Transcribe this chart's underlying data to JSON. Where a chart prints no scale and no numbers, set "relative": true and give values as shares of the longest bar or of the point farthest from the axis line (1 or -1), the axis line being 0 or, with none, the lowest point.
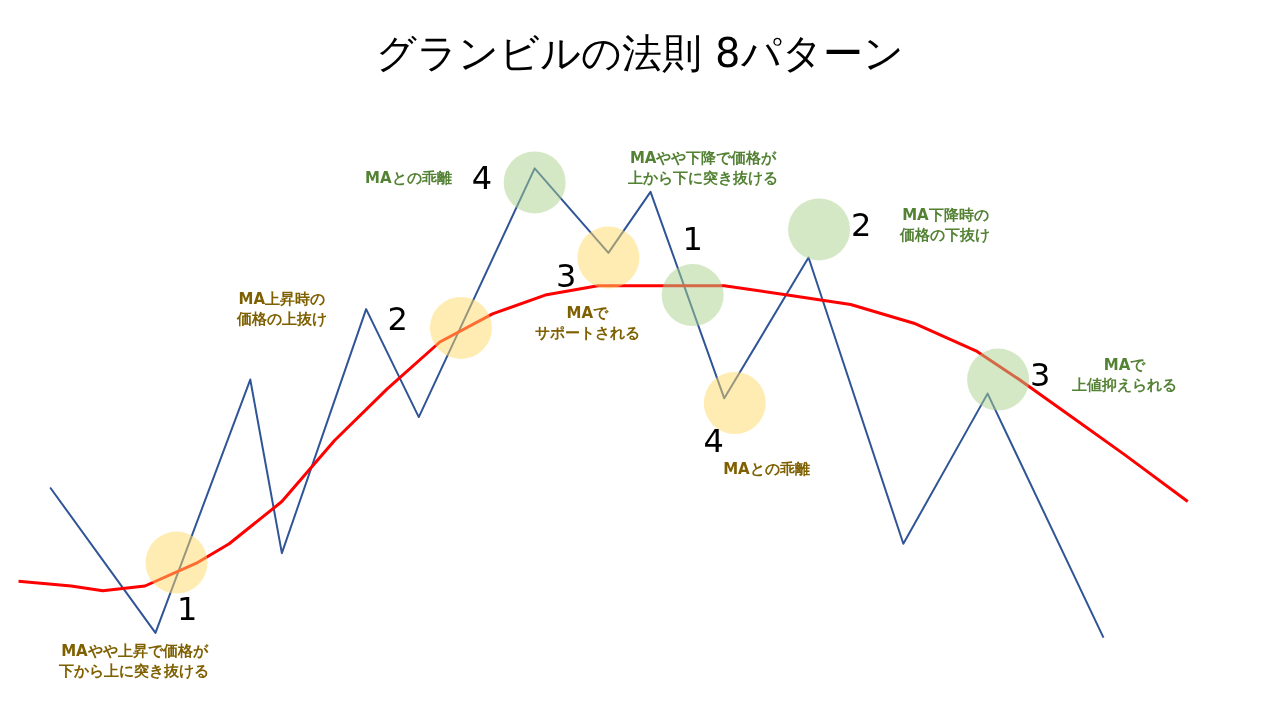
{
  "chart_data": {
    "type": "line",
    "title": "グランビルの法則 8パターン",
    "relative": true,
    "tick_labels": false,
    "grid": false,
    "legend": false,
    "categories": [
      null,
      null,
      null,
      null,
      null,
      null,
      null,
      null,
      null,
      null,
      null,
      null,
      null,
      null,
      null,
      null,
      null,
      null,
      null,
      null,
      null,
      null,
      null,
      null,
      null,
      null,
      null,
      null,
      null,
      null,
      null,
      null,
      null,
      null,
      null,
      null,
      null,
      null,
      null,
      null,
      null,
      null,
      null,
      null,
      null,
      null,
      null,
      null,
      null,
      null,
      null,
      null,
      null,
      null,
      null,
      null,
      null,
      null,
      null,
      null,
      null,
      null,
      null,
      null,
      null,
      null,
      null,
      null,
      null,
      null,
      null,
      null,
      null,
      null,
      null,
      null,
      null,
      null,
      null,
      null,
      null,
      null,
      null,
      null,
      null,
      null,
      null,
      null,
      null,
      null,
      null,
      null,
      null,
      null,
      null,
      null,
      null,
      null,
      null,
      null,
      null,
      null,
      null,
      null,
      null,
      null,
      null,
      null,
      null,
      null,
      null,
      null,
      null,
      null,
      null,
      null,
      null,
      null,
      null,
      null,
      null
    ],
    "series": [
      {
        "color": "#2f5597",
        "values": [
          null,
          null,
          null,
          null,
          0.32,
          null,
          null,
          null,
          null,
          null,
          null,
          null,
          null,
          null,
          0.01,
          null,
          null,
          null,
          null,
          null,
          null,
          null,
          null,
          0.55,
          null,
          null,
          0.18,
          null,
          null,
          null,
          null,
          null,
          null,
          null,
          0.7,
          null,
          null,
          null,
          null,
          0.47,
          null,
          null,
          null,
          null,
          null,
          null,
          null,
          null,
          null,
          null,
          1,
          null,
          null,
          null,
          null,
          null,
          null,
          0.82,
          null,
          null,
          null,
          0.95,
          null,
          null,
          null,
          null,
          null,
          null,
          0.51,
          null,
          null,
          null,
          null,
          null,
          null,
          null,
          0.81,
          null,
          null,
          null,
          null,
          null,
          null,
          null,
          null,
          0.2,
          null,
          null,
          null,
          null,
          null,
          null,
          null,
          0.52,
          null,
          null,
          null,
          null,
          null,
          null,
          null,
          null,
          null,
          null,
          0,
          null,
          null,
          null,
          null,
          null,
          null,
          null,
          null,
          null,
          null,
          null,
          null,
          null,
          null,
          null,
          null
        ]
      },
      {
        "color": "#ff0000",
        "values": [
          null,
          0.12,
          null,
          null,
          null,
          null,
          0.11,
          null,
          null,
          0.1,
          null,
          null,
          null,
          0.11,
          null,
          null,
          null,
          null,
          0.16,
          null,
          null,
          0.2,
          null,
          null,
          null,
          null,
          0.29,
          null,
          null,
          null,
          null,
          0.42,
          null,
          null,
          null,
          null,
          0.53,
          null,
          null,
          null,
          null,
          0.63,
          null,
          null,
          null,
          null,
          0.69,
          null,
          null,
          null,
          null,
          0.73,
          null,
          null,
          null,
          null,
          0.75,
          null,
          null,
          null,
          null,
          null,
          0.75,
          null,
          null,
          null,
          null,
          null,
          0.75,
          null,
          null,
          null,
          null,
          null,
          0.73,
          null,
          null,
          null,
          null,
          null,
          0.71,
          null,
          null,
          null,
          null,
          null,
          0.67,
          null,
          null,
          null,
          null,
          null,
          0.61,
          null,
          null,
          null,
          0.55,
          null,
          null,
          null,
          null,
          0.47,
          null,
          null,
          null,
          null,
          0.39,
          null,
          null,
          null,
          null,
          null,
          0.29,
          null,
          null,
          null,
          null,
          null,
          null,
          null,
          null
        ]
      }
    ],
    "annotations": [
      "1",
      "MAやや上昇で価格が下から上に突き抜ける",
      "MA上昇時の価格の上抜け",
      "2",
      "3",
      "MAでサポートされる",
      "4",
      "MAとの乖離",
      "MAとの乖離",
      "4",
      "MAやや下降で価格が上から下に突き抜ける",
      "1",
      "2",
      "MA下降時の価格の下抜け",
      "3",
      "MAで上値抑えられる"
    ]
  }
}
